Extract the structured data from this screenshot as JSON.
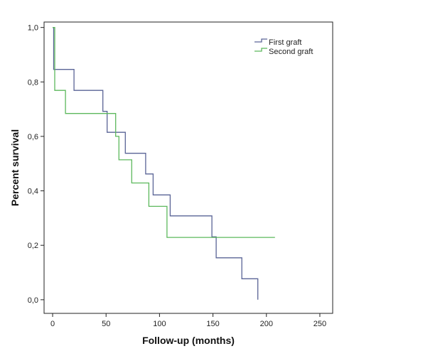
{
  "chart_data": {
    "type": "line",
    "step": true,
    "title": "",
    "xlabel": "Follow-up (months)",
    "ylabel": "Percent survival",
    "xlim": [
      -8,
      262
    ],
    "ylim": [
      -0.05,
      1.02
    ],
    "x_ticks": [
      {
        "value": 0,
        "label": "0"
      },
      {
        "value": 50,
        "label": "50"
      },
      {
        "value": 100,
        "label": "100"
      },
      {
        "value": 150,
        "label": "150"
      },
      {
        "value": 200,
        "label": "200"
      },
      {
        "value": 250,
        "label": "250"
      }
    ],
    "y_ticks": [
      {
        "value": 0.0,
        "label": "0,0"
      },
      {
        "value": 0.2,
        "label": "0,2"
      },
      {
        "value": 0.4,
        "label": "0,4"
      },
      {
        "value": 0.6,
        "label": "0,6"
      },
      {
        "value": 0.8,
        "label": "0,8"
      },
      {
        "value": 1.0,
        "label": "1,0"
      }
    ],
    "grid": false,
    "legend_position": "top-right",
    "series": [
      {
        "name": "First graft",
        "color": "#5a6496",
        "points": [
          [
            0,
            1.0
          ],
          [
            1,
            0.846
          ],
          [
            20,
            0.769
          ],
          [
            47,
            0.692
          ],
          [
            51,
            0.615
          ],
          [
            68,
            0.538
          ],
          [
            87,
            0.462
          ],
          [
            94,
            0.385
          ],
          [
            110,
            0.308
          ],
          [
            149,
            0.231
          ],
          [
            153,
            0.154
          ],
          [
            177,
            0.077
          ],
          [
            192,
            0.0
          ]
        ]
      },
      {
        "name": "Second graft",
        "color": "#5cb85c",
        "points": [
          [
            0,
            1.0
          ],
          [
            2,
            0.769
          ],
          [
            12,
            0.684
          ],
          [
            59,
            0.6
          ],
          [
            62,
            0.514
          ],
          [
            74,
            0.429
          ],
          [
            90,
            0.343
          ],
          [
            107,
            0.229
          ],
          [
            208,
            0.229
          ]
        ]
      }
    ]
  }
}
